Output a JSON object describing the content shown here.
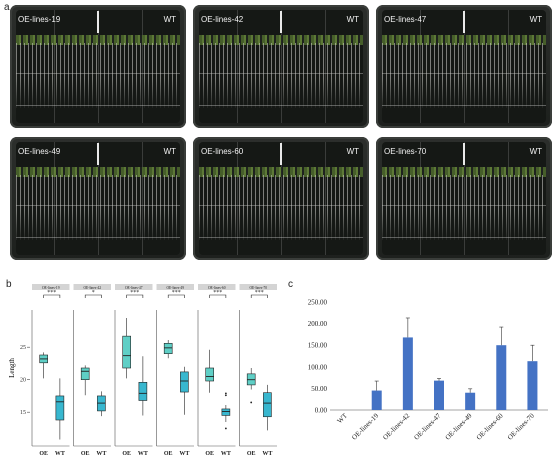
{
  "panels": {
    "a": "a",
    "b": "b",
    "c": "c"
  },
  "plates": [
    {
      "left": "OE-lines-19",
      "right": "WT"
    },
    {
      "left": "OE-lines-42",
      "right": "WT"
    },
    {
      "left": "OE-lines-47",
      "right": "WT"
    },
    {
      "left": "OE-lines-49",
      "right": "WT"
    },
    {
      "left": "OE-lines-60",
      "right": "WT"
    },
    {
      "left": "OE-lines-70",
      "right": "WT"
    }
  ],
  "colors": {
    "oe_box": "#5fcfc6",
    "wt_box": "#38b7cf",
    "bar": "#4472c4",
    "facet_header": "#d4d4d4"
  },
  "chart_data": [
    {
      "type": "box",
      "ylabel": "Length",
      "yticks": [
        15,
        20,
        25
      ],
      "ylim": [
        9.8,
        29.8
      ],
      "xtick_labels": [
        "OE",
        "WT"
      ],
      "facets": [
        {
          "title": "OE-lines-19",
          "significance": "***",
          "OE": {
            "min": 20.2,
            "q1": 22.6,
            "median": 23.2,
            "q3": 23.8,
            "max": 24.2
          },
          "WT": {
            "min": 10.8,
            "q1": 13.8,
            "median": 16.6,
            "q3": 17.5,
            "max": 20.2
          }
        },
        {
          "title": "OE-lines-42",
          "significance": "*",
          "OE": {
            "min": 17.6,
            "q1": 20.0,
            "median": 21.3,
            "q3": 21.8,
            "max": 22.2
          },
          "WT": {
            "min": 14.4,
            "q1": 15.2,
            "median": 16.4,
            "q3": 17.5,
            "max": 18.2
          }
        },
        {
          "title": "OE-lines-47",
          "significance": "***",
          "OE": {
            "min": 20.2,
            "q1": 21.8,
            "median": 23.7,
            "q3": 26.7,
            "max": 29.5
          },
          "WT": {
            "min": 14.5,
            "q1": 16.8,
            "median": 17.9,
            "q3": 19.6,
            "max": 23.6
          }
        },
        {
          "title": "OE-lines-49",
          "significance": "***",
          "OE": {
            "min": 23.3,
            "q1": 24.0,
            "median": 24.9,
            "q3": 25.6,
            "max": 26.1
          },
          "WT": {
            "min": 14.6,
            "q1": 18.1,
            "median": 19.8,
            "q3": 21.2,
            "max": 22.0
          },
          "WT_outliers": []
        },
        {
          "title": "OE-lines-60",
          "significance": "***",
          "OE": {
            "min": 18.0,
            "q1": 19.8,
            "median": 20.5,
            "q3": 21.8,
            "max": 24.6
          },
          "WT": {
            "min": 13.5,
            "q1": 14.5,
            "median": 15.1,
            "q3": 15.5,
            "max": 16.1
          },
          "WT_outliers": [
            17.6,
            17.9,
            12.5
          ]
        },
        {
          "title": "OE-lines-70",
          "significance": "***",
          "OE": {
            "min": 18.5,
            "q1": 19.2,
            "median": 20.0,
            "q3": 20.9,
            "max": 21.8
          },
          "OE_outliers": [
            16.5
          ],
          "WT": {
            "min": 12.2,
            "q1": 14.3,
            "median": 16.4,
            "q3": 18.0,
            "max": 19.2
          }
        }
      ]
    },
    {
      "type": "bar",
      "categories": [
        "WT",
        "OE-lines-19",
        "OE-lines-42",
        "OE-lines-47",
        "OE-lines-49",
        "OE-lines-60",
        "OE-lines-70"
      ],
      "values": [
        0,
        45,
        168,
        68,
        40,
        150,
        113
      ],
      "errors": [
        0,
        22,
        45,
        5,
        9,
        42,
        37
      ],
      "yticks": [
        "0.00",
        "50.00",
        "100.00",
        "150.00",
        "200.00",
        "250.00"
      ],
      "ylim": [
        0,
        250
      ]
    }
  ]
}
